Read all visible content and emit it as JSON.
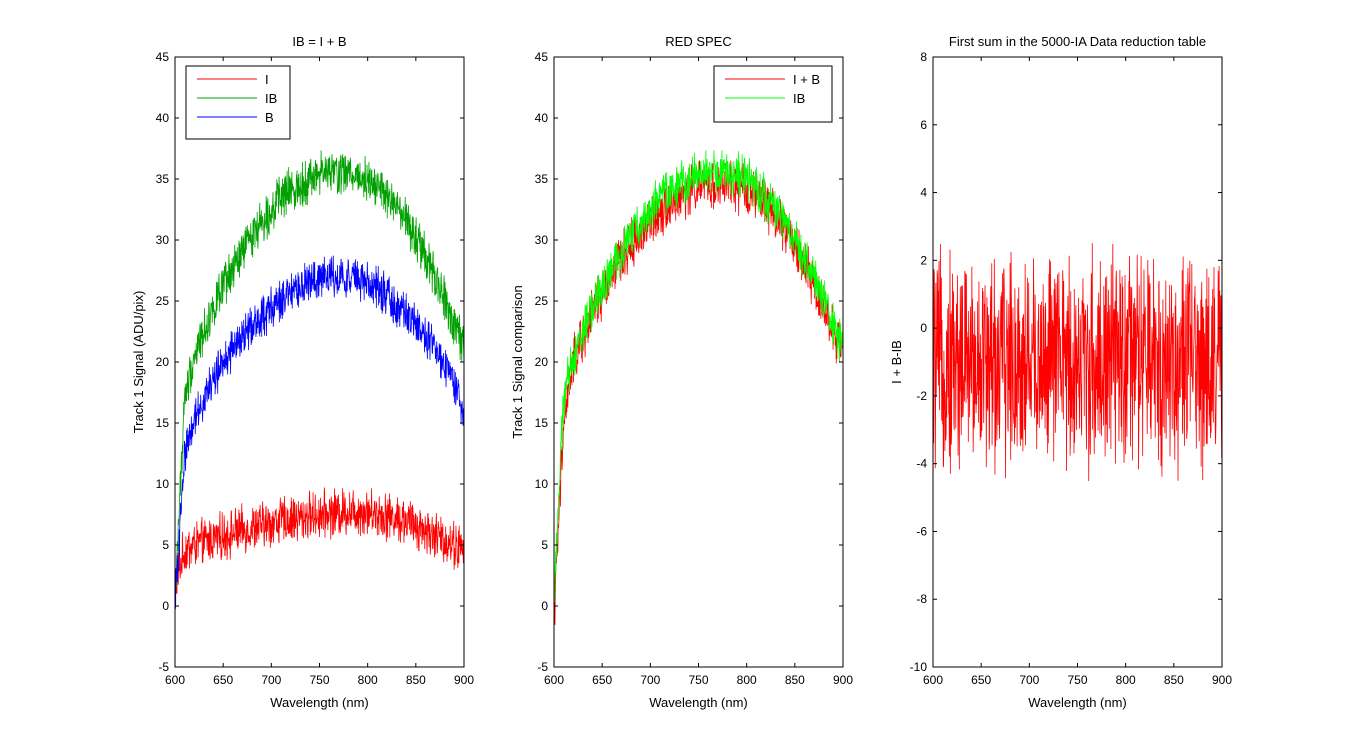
{
  "chart_data": [
    {
      "type": "line",
      "title": "IB = I + B",
      "xlabel": "Wavelength (nm)",
      "ylabel": "Track 1 Signal (ADU/pix)",
      "xlim": [
        600,
        900
      ],
      "ylim": [
        -5,
        45
      ],
      "xticks": [
        600,
        650,
        700,
        750,
        800,
        850,
        900
      ],
      "yticks": [
        -5,
        0,
        5,
        10,
        15,
        20,
        25,
        30,
        35,
        40,
        45
      ],
      "legend_position": "top-left",
      "x": [
        600,
        610,
        620,
        630,
        640,
        650,
        660,
        670,
        680,
        690,
        700,
        710,
        720,
        730,
        740,
        750,
        760,
        770,
        780,
        790,
        800,
        810,
        820,
        830,
        840,
        850,
        860,
        870,
        880,
        890,
        900
      ],
      "series": [
        {
          "name": "I",
          "color": "#ff0000",
          "noise": 1.6,
          "values": [
            2,
            4.5,
            5,
            5.2,
            5.5,
            5.7,
            6,
            6.2,
            6.4,
            6.6,
            6.8,
            7,
            7.1,
            7.2,
            7.4,
            7.5,
            7.6,
            7.7,
            7.8,
            7.8,
            7.7,
            7.6,
            7.4,
            7.2,
            7,
            6.6,
            6.2,
            5.8,
            5.4,
            5,
            4.5
          ]
        },
        {
          "name": "IB",
          "color": "#00a000",
          "noise": 1.5,
          "values": [
            1,
            17,
            20.5,
            22.5,
            24.5,
            26,
            27.5,
            29,
            30.5,
            31.5,
            32.5,
            33.5,
            34,
            34.5,
            35,
            35.5,
            35.5,
            35.5,
            35.5,
            35.3,
            35,
            34.5,
            33.5,
            32.5,
            31.5,
            30,
            28.5,
            27,
            25,
            23,
            21
          ]
        },
        {
          "name": "B",
          "color": "#0000ff",
          "noise": 1.4,
          "values": [
            0,
            12.5,
            15.5,
            17,
            18.5,
            20,
            21,
            22,
            23,
            23.5,
            24.5,
            25,
            25.5,
            26,
            26.5,
            27,
            27,
            27,
            27,
            26.8,
            26.5,
            26,
            25.5,
            24.5,
            24,
            23,
            22,
            21,
            19.5,
            18,
            16
          ]
        }
      ]
    },
    {
      "type": "line",
      "title": "RED SPEC",
      "xlabel": "Wavelength (nm)",
      "ylabel": "Track 1 Signal comparison",
      "xlim": [
        600,
        900
      ],
      "ylim": [
        -5,
        45
      ],
      "xticks": [
        600,
        650,
        700,
        750,
        800,
        850,
        900
      ],
      "yticks": [
        -5,
        0,
        5,
        10,
        15,
        20,
        25,
        30,
        35,
        40,
        45
      ],
      "legend_position": "top-right",
      "x": [
        600,
        610,
        620,
        630,
        640,
        650,
        660,
        670,
        680,
        690,
        700,
        710,
        720,
        730,
        740,
        750,
        760,
        770,
        780,
        790,
        800,
        810,
        820,
        830,
        840,
        850,
        860,
        870,
        880,
        890,
        900
      ],
      "series": [
        {
          "name": "I + B",
          "color": "#ff0000",
          "noise": 1.7,
          "values": [
            -1,
            15,
            20,
            22,
            24,
            25.5,
            27,
            28.5,
            29.5,
            30.5,
            31.5,
            32.5,
            33,
            33.5,
            34,
            34.5,
            34.5,
            34.5,
            34.5,
            34.2,
            34,
            33.5,
            33,
            32,
            31,
            29.5,
            28,
            26.5,
            24.5,
            22.5,
            20.5
          ]
        },
        {
          "name": "IB",
          "color": "#00ff00",
          "noise": 1.5,
          "values": [
            1,
            17,
            20.5,
            22.5,
            24.5,
            26,
            27.5,
            29,
            30.5,
            31.5,
            32.5,
            33.5,
            34,
            34.5,
            35,
            35.5,
            35.5,
            35.5,
            35.5,
            35.3,
            35,
            34.5,
            33.5,
            32.5,
            31.5,
            30,
            28.5,
            27,
            25,
            23,
            21
          ]
        }
      ]
    },
    {
      "type": "line",
      "title": "First sum in the 5000-IA Data reduction table",
      "xlabel": "Wavelength (nm)",
      "ylabel": "I + B-IB",
      "xlim": [
        600,
        900
      ],
      "ylim": [
        -10,
        8
      ],
      "xticks": [
        600,
        650,
        700,
        750,
        800,
        850,
        900
      ],
      "yticks": [
        -10,
        -8,
        -6,
        -4,
        -2,
        0,
        2,
        4,
        6,
        8
      ],
      "x": [
        600,
        900
      ],
      "series": [
        {
          "color": "#ff0000",
          "noise": 2.6,
          "values": [
            -1,
            -1
          ]
        }
      ]
    }
  ]
}
